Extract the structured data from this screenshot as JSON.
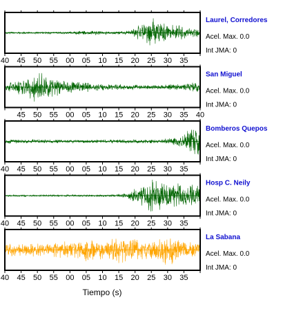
{
  "chart_data": {
    "type": "line",
    "xlabel": "Tiempo (s)",
    "panels": [
      {
        "station": "Laurel, Corredores",
        "accel_label": "Acel. Max. 0.0",
        "jma_label": "Int JMA: 0",
        "color": "#006400",
        "tick_labels": [
          "40",
          "45",
          "50",
          "55",
          "00",
          "05",
          "10",
          "15",
          "20",
          "25",
          "30",
          "35"
        ],
        "envelope": [
          [
            0,
            0.05
          ],
          [
            0.3,
            0.06
          ],
          [
            0.45,
            0.14
          ],
          [
            0.5,
            0.1
          ],
          [
            0.55,
            0.08
          ],
          [
            0.63,
            0.12
          ],
          [
            0.7,
            0.5
          ],
          [
            0.75,
            0.85
          ],
          [
            0.8,
            0.65
          ],
          [
            0.85,
            0.45
          ],
          [
            0.9,
            0.45
          ],
          [
            0.96,
            0.25
          ],
          [
            1,
            0.3
          ]
        ]
      },
      {
        "station": "San Miguel",
        "accel_label": "Acel. Max. 0.0",
        "jma_label": "Int JMA: 0",
        "color": "#006400",
        "tick_labels": [
          "45",
          "50",
          "55",
          "00",
          "05",
          "10",
          "15",
          "20",
          "25",
          "30",
          "35",
          "40"
        ],
        "envelope": [
          [
            0,
            0.2
          ],
          [
            0.1,
            0.5
          ],
          [
            0.17,
            0.95
          ],
          [
            0.25,
            0.5
          ],
          [
            0.35,
            0.35
          ],
          [
            0.5,
            0.2
          ],
          [
            0.7,
            0.12
          ],
          [
            0.9,
            0.18
          ],
          [
            0.96,
            0.28
          ],
          [
            1,
            0.35
          ]
        ]
      },
      {
        "station": "Bomberos Quepos",
        "accel_label": "Acel. Max. 0.0",
        "jma_label": "Int JMA: 0",
        "color": "#006400",
        "tick_labels": [
          "40",
          "45",
          "50",
          "55",
          "00",
          "05",
          "10",
          "15",
          "20",
          "25",
          "30",
          "35"
        ],
        "envelope": [
          [
            0,
            0.12
          ],
          [
            0.4,
            0.1
          ],
          [
            0.8,
            0.12
          ],
          [
            0.88,
            0.25
          ],
          [
            0.93,
            0.55
          ],
          [
            0.97,
            0.9
          ],
          [
            1,
            0.95
          ]
        ]
      },
      {
        "station": "Hosp C. Neily",
        "accel_label": "Acel. Max. 0.0",
        "jma_label": "Int JMA: 0",
        "color": "#006400",
        "tick_labels": [
          "40",
          "45",
          "50",
          "55",
          "00",
          "05",
          "10",
          "15",
          "20",
          "25",
          "30",
          "35"
        ],
        "envelope": [
          [
            0,
            0.05
          ],
          [
            0.55,
            0.06
          ],
          [
            0.63,
            0.15
          ],
          [
            0.68,
            0.55
          ],
          [
            0.72,
            0.95
          ],
          [
            0.8,
            0.85
          ],
          [
            0.9,
            0.7
          ],
          [
            1,
            0.65
          ]
        ]
      },
      {
        "station": "La Sabana",
        "accel_label": "Acel. Max. 0.0",
        "jma_label": "Int JMA: 0",
        "color": "#ffa500",
        "tick_labels": [
          "40",
          "45",
          "50",
          "55",
          "00",
          "05",
          "10",
          "15",
          "20",
          "25",
          "30",
          "35"
        ],
        "envelope": [
          [
            0,
            0.35
          ],
          [
            0.2,
            0.4
          ],
          [
            0.35,
            0.5
          ],
          [
            0.42,
            0.75
          ],
          [
            0.5,
            0.5
          ],
          [
            0.58,
            0.85
          ],
          [
            0.65,
            0.65
          ],
          [
            0.75,
            0.55
          ],
          [
            0.85,
            0.9
          ],
          [
            0.9,
            0.5
          ],
          [
            1,
            0.4
          ]
        ]
      }
    ]
  }
}
